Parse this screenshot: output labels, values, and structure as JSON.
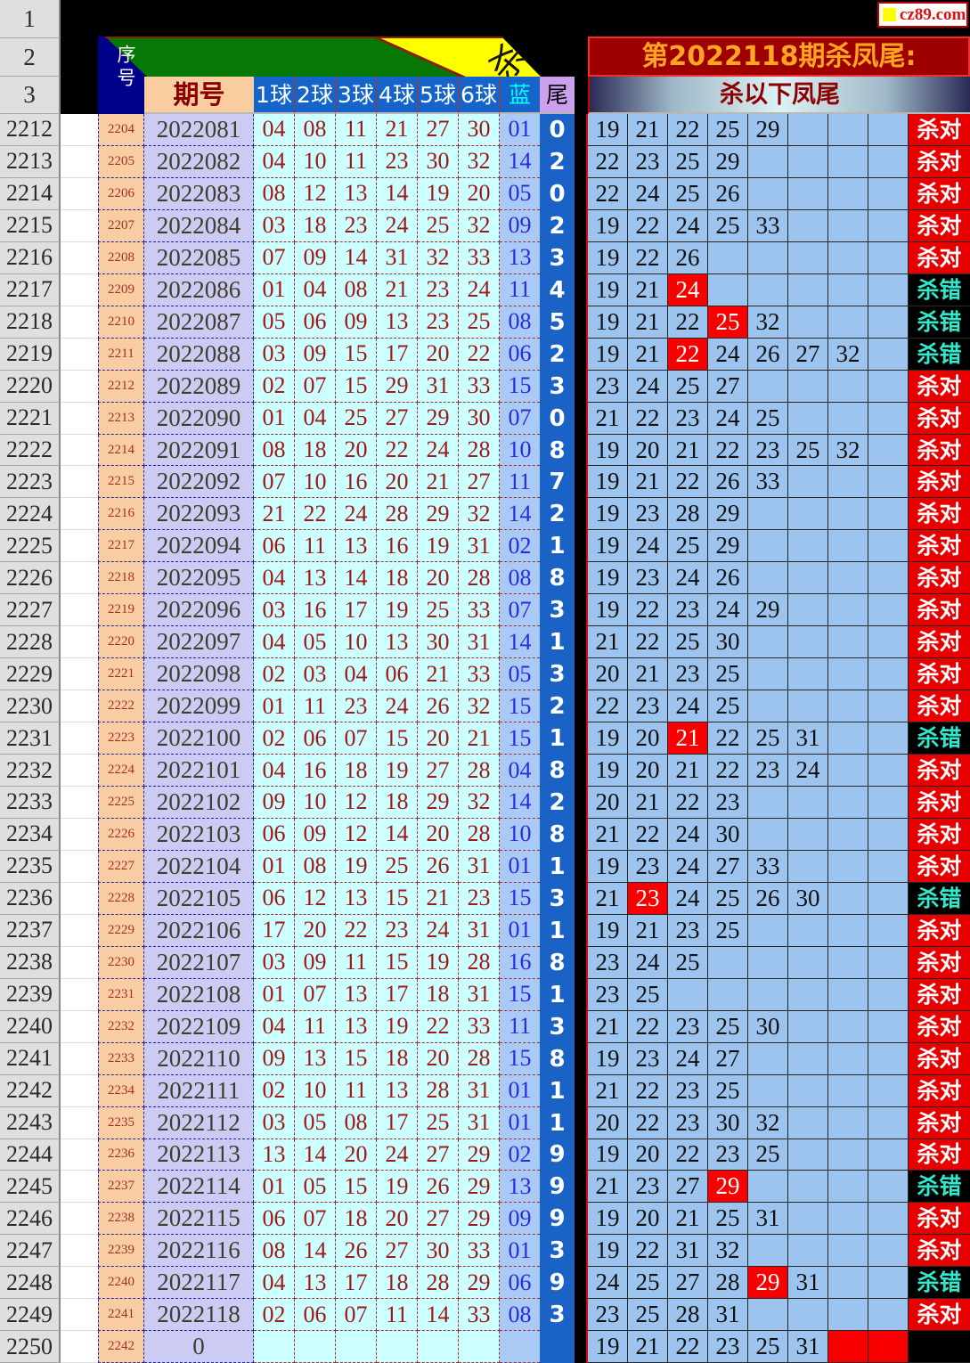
{
  "logo": {
    "text": "cz89.com"
  },
  "right_panel": {
    "title": "第2022118期杀凤尾:",
    "subtitle": "杀以下凤尾"
  },
  "headers": {
    "xuhao": "序号",
    "qihao": "期号",
    "balls": [
      "1球",
      "2球",
      "3球",
      "4球",
      "5球",
      "6球"
    ],
    "blue": "蓝",
    "tail": "尾"
  },
  "deco": {
    "rotated_glyph": "杀"
  },
  "gutter_top": [
    "1",
    "2",
    "3"
  ],
  "results": {
    "correct": "杀对",
    "wrong": "杀错"
  },
  "rows": [
    {
      "gutter": "2212",
      "xuhao": "2204",
      "qihao": "2022081",
      "balls": [
        "04",
        "08",
        "11",
        "21",
        "27",
        "30"
      ],
      "blue": "01",
      "tail": "0",
      "kills": [
        "19",
        "21",
        "22",
        "25",
        "29"
      ],
      "hot": [],
      "red": [],
      "result": "correct"
    },
    {
      "gutter": "2213",
      "xuhao": "2205",
      "qihao": "2022082",
      "balls": [
        "04",
        "10",
        "11",
        "23",
        "30",
        "32"
      ],
      "blue": "14",
      "tail": "2",
      "kills": [
        "22",
        "23",
        "25",
        "29"
      ],
      "hot": [],
      "red": [],
      "result": "correct"
    },
    {
      "gutter": "2214",
      "xuhao": "2206",
      "qihao": "2022083",
      "balls": [
        "08",
        "12",
        "13",
        "14",
        "19",
        "20"
      ],
      "blue": "05",
      "tail": "0",
      "kills": [
        "22",
        "24",
        "25",
        "26"
      ],
      "hot": [],
      "red": [],
      "result": "correct"
    },
    {
      "gutter": "2215",
      "xuhao": "2207",
      "qihao": "2022084",
      "balls": [
        "03",
        "18",
        "23",
        "24",
        "25",
        "32"
      ],
      "blue": "09",
      "tail": "2",
      "kills": [
        "19",
        "22",
        "24",
        "25",
        "33"
      ],
      "hot": [],
      "red": [],
      "result": "correct"
    },
    {
      "gutter": "2216",
      "xuhao": "2208",
      "qihao": "2022085",
      "balls": [
        "07",
        "09",
        "14",
        "31",
        "32",
        "33"
      ],
      "blue": "13",
      "tail": "3",
      "kills": [
        "19",
        "22",
        "26"
      ],
      "hot": [],
      "red": [],
      "result": "correct"
    },
    {
      "gutter": "2217",
      "xuhao": "2209",
      "qihao": "2022086",
      "balls": [
        "01",
        "04",
        "08",
        "21",
        "23",
        "24"
      ],
      "blue": "11",
      "tail": "4",
      "kills": [
        "19",
        "21",
        "24"
      ],
      "hot": [
        2
      ],
      "red": [],
      "result": "wrong"
    },
    {
      "gutter": "2218",
      "xuhao": "2210",
      "qihao": "2022087",
      "balls": [
        "05",
        "06",
        "09",
        "13",
        "23",
        "25"
      ],
      "blue": "08",
      "tail": "5",
      "kills": [
        "19",
        "21",
        "22",
        "25",
        "32"
      ],
      "hot": [
        3
      ],
      "red": [],
      "result": "wrong"
    },
    {
      "gutter": "2219",
      "xuhao": "2211",
      "qihao": "2022088",
      "balls": [
        "03",
        "09",
        "15",
        "17",
        "20",
        "22"
      ],
      "blue": "06",
      "tail": "2",
      "kills": [
        "19",
        "21",
        "22",
        "24",
        "26",
        "27",
        "32"
      ],
      "hot": [
        2
      ],
      "red": [],
      "result": "wrong"
    },
    {
      "gutter": "2220",
      "xuhao": "2212",
      "qihao": "2022089",
      "balls": [
        "02",
        "07",
        "15",
        "29",
        "31",
        "33"
      ],
      "blue": "15",
      "tail": "3",
      "kills": [
        "23",
        "24",
        "25",
        "27"
      ],
      "hot": [],
      "red": [],
      "result": "correct"
    },
    {
      "gutter": "2221",
      "xuhao": "2213",
      "qihao": "2022090",
      "balls": [
        "01",
        "04",
        "25",
        "27",
        "29",
        "30"
      ],
      "blue": "07",
      "tail": "0",
      "kills": [
        "21",
        "22",
        "23",
        "24",
        "25"
      ],
      "hot": [],
      "red": [],
      "result": "correct"
    },
    {
      "gutter": "2222",
      "xuhao": "2214",
      "qihao": "2022091",
      "balls": [
        "08",
        "18",
        "20",
        "22",
        "24",
        "28"
      ],
      "blue": "10",
      "tail": "8",
      "kills": [
        "19",
        "20",
        "21",
        "22",
        "23",
        "25",
        "32"
      ],
      "hot": [],
      "red": [],
      "result": "correct"
    },
    {
      "gutter": "2223",
      "xuhao": "2215",
      "qihao": "2022092",
      "balls": [
        "07",
        "10",
        "16",
        "20",
        "21",
        "27"
      ],
      "blue": "11",
      "tail": "7",
      "kills": [
        "19",
        "21",
        "22",
        "26",
        "33"
      ],
      "hot": [],
      "red": [],
      "result": "correct"
    },
    {
      "gutter": "2224",
      "xuhao": "2216",
      "qihao": "2022093",
      "balls": [
        "21",
        "22",
        "24",
        "28",
        "29",
        "32"
      ],
      "blue": "14",
      "tail": "2",
      "kills": [
        "19",
        "23",
        "28",
        "29"
      ],
      "hot": [],
      "red": [],
      "result": "correct"
    },
    {
      "gutter": "2225",
      "xuhao": "2217",
      "qihao": "2022094",
      "balls": [
        "06",
        "11",
        "13",
        "16",
        "19",
        "31"
      ],
      "blue": "02",
      "tail": "1",
      "kills": [
        "19",
        "24",
        "25",
        "29"
      ],
      "hot": [],
      "red": [],
      "result": "correct"
    },
    {
      "gutter": "2226",
      "xuhao": "2218",
      "qihao": "2022095",
      "balls": [
        "04",
        "13",
        "14",
        "18",
        "20",
        "28"
      ],
      "blue": "08",
      "tail": "8",
      "kills": [
        "19",
        "23",
        "24",
        "26"
      ],
      "hot": [],
      "red": [],
      "result": "correct"
    },
    {
      "gutter": "2227",
      "xuhao": "2219",
      "qihao": "2022096",
      "balls": [
        "03",
        "16",
        "17",
        "19",
        "25",
        "33"
      ],
      "blue": "07",
      "tail": "3",
      "kills": [
        "19",
        "22",
        "23",
        "24",
        "29"
      ],
      "hot": [],
      "red": [],
      "result": "correct"
    },
    {
      "gutter": "2228",
      "xuhao": "2220",
      "qihao": "2022097",
      "balls": [
        "04",
        "05",
        "10",
        "13",
        "30",
        "31"
      ],
      "blue": "14",
      "tail": "1",
      "kills": [
        "21",
        "22",
        "25",
        "30"
      ],
      "hot": [],
      "red": [],
      "result": "correct"
    },
    {
      "gutter": "2229",
      "xuhao": "2221",
      "qihao": "2022098",
      "balls": [
        "02",
        "03",
        "04",
        "06",
        "21",
        "33"
      ],
      "blue": "05",
      "tail": "3",
      "kills": [
        "20",
        "21",
        "23",
        "25"
      ],
      "hot": [],
      "red": [],
      "result": "correct"
    },
    {
      "gutter": "2230",
      "xuhao": "2222",
      "qihao": "2022099",
      "balls": [
        "01",
        "11",
        "23",
        "24",
        "26",
        "32"
      ],
      "blue": "15",
      "tail": "2",
      "kills": [
        "22",
        "23",
        "24",
        "25"
      ],
      "hot": [],
      "red": [],
      "result": "correct"
    },
    {
      "gutter": "2231",
      "xuhao": "2223",
      "qihao": "2022100",
      "balls": [
        "02",
        "06",
        "07",
        "15",
        "20",
        "21"
      ],
      "blue": "15",
      "tail": "1",
      "kills": [
        "19",
        "20",
        "21",
        "22",
        "25",
        "31"
      ],
      "hot": [
        2
      ],
      "red": [],
      "result": "wrong"
    },
    {
      "gutter": "2232",
      "xuhao": "2224",
      "qihao": "2022101",
      "balls": [
        "04",
        "16",
        "18",
        "19",
        "27",
        "28"
      ],
      "blue": "04",
      "tail": "8",
      "kills": [
        "19",
        "20",
        "21",
        "22",
        "23",
        "24"
      ],
      "hot": [],
      "red": [],
      "result": "correct"
    },
    {
      "gutter": "2233",
      "xuhao": "2225",
      "qihao": "2022102",
      "balls": [
        "09",
        "10",
        "12",
        "18",
        "29",
        "32"
      ],
      "blue": "14",
      "tail": "2",
      "kills": [
        "20",
        "21",
        "22",
        "23"
      ],
      "hot": [],
      "red": [],
      "result": "correct"
    },
    {
      "gutter": "2234",
      "xuhao": "2226",
      "qihao": "2022103",
      "balls": [
        "06",
        "09",
        "12",
        "14",
        "20",
        "28"
      ],
      "blue": "10",
      "tail": "8",
      "kills": [
        "21",
        "22",
        "24",
        "30"
      ],
      "hot": [],
      "red": [],
      "result": "correct"
    },
    {
      "gutter": "2235",
      "xuhao": "2227",
      "qihao": "2022104",
      "balls": [
        "01",
        "08",
        "19",
        "25",
        "26",
        "31"
      ],
      "blue": "01",
      "tail": "1",
      "kills": [
        "19",
        "23",
        "24",
        "27",
        "33"
      ],
      "hot": [],
      "red": [],
      "result": "correct"
    },
    {
      "gutter": "2236",
      "xuhao": "2228",
      "qihao": "2022105",
      "balls": [
        "06",
        "12",
        "13",
        "15",
        "21",
        "23"
      ],
      "blue": "15",
      "tail": "3",
      "kills": [
        "21",
        "23",
        "24",
        "25",
        "26",
        "30"
      ],
      "hot": [
        1
      ],
      "red": [],
      "result": "wrong"
    },
    {
      "gutter": "2237",
      "xuhao": "2229",
      "qihao": "2022106",
      "balls": [
        "17",
        "20",
        "22",
        "23",
        "24",
        "31"
      ],
      "blue": "01",
      "tail": "1",
      "kills": [
        "19",
        "21",
        "23",
        "25"
      ],
      "hot": [],
      "red": [],
      "result": "correct"
    },
    {
      "gutter": "2238",
      "xuhao": "2230",
      "qihao": "2022107",
      "balls": [
        "03",
        "09",
        "11",
        "15",
        "19",
        "28"
      ],
      "blue": "16",
      "tail": "8",
      "kills": [
        "23",
        "24",
        "25"
      ],
      "hot": [],
      "red": [],
      "result": "correct"
    },
    {
      "gutter": "2239",
      "xuhao": "2231",
      "qihao": "2022108",
      "balls": [
        "01",
        "07",
        "13",
        "17",
        "18",
        "31"
      ],
      "blue": "15",
      "tail": "1",
      "kills": [
        "23",
        "25"
      ],
      "hot": [],
      "red": [],
      "result": "correct"
    },
    {
      "gutter": "2240",
      "xuhao": "2232",
      "qihao": "2022109",
      "balls": [
        "04",
        "11",
        "13",
        "19",
        "22",
        "33"
      ],
      "blue": "11",
      "tail": "3",
      "kills": [
        "21",
        "22",
        "23",
        "25",
        "30"
      ],
      "hot": [],
      "red": [],
      "result": "correct"
    },
    {
      "gutter": "2241",
      "xuhao": "2233",
      "qihao": "2022110",
      "balls": [
        "09",
        "13",
        "15",
        "18",
        "20",
        "28"
      ],
      "blue": "15",
      "tail": "8",
      "kills": [
        "19",
        "23",
        "24",
        "27"
      ],
      "hot": [],
      "red": [],
      "result": "correct"
    },
    {
      "gutter": "2242",
      "xuhao": "2234",
      "qihao": "2022111",
      "balls": [
        "02",
        "10",
        "11",
        "13",
        "28",
        "31"
      ],
      "blue": "01",
      "tail": "1",
      "kills": [
        "21",
        "22",
        "23",
        "25"
      ],
      "hot": [],
      "red": [],
      "result": "correct"
    },
    {
      "gutter": "2243",
      "xuhao": "2235",
      "qihao": "2022112",
      "balls": [
        "03",
        "05",
        "08",
        "17",
        "25",
        "31"
      ],
      "blue": "01",
      "tail": "1",
      "kills": [
        "20",
        "22",
        "23",
        "30",
        "32"
      ],
      "hot": [],
      "red": [],
      "result": "correct"
    },
    {
      "gutter": "2244",
      "xuhao": "2236",
      "qihao": "2022113",
      "balls": [
        "13",
        "14",
        "20",
        "24",
        "27",
        "29"
      ],
      "blue": "02",
      "tail": "9",
      "kills": [
        "19",
        "20",
        "22",
        "23",
        "25"
      ],
      "hot": [],
      "red": [],
      "result": "correct"
    },
    {
      "gutter": "2245",
      "xuhao": "2237",
      "qihao": "2022114",
      "balls": [
        "01",
        "05",
        "15",
        "19",
        "26",
        "29"
      ],
      "blue": "13",
      "tail": "9",
      "kills": [
        "21",
        "23",
        "27",
        "29"
      ],
      "hot": [
        3
      ],
      "red": [],
      "result": "wrong"
    },
    {
      "gutter": "2246",
      "xuhao": "2238",
      "qihao": "2022115",
      "balls": [
        "06",
        "07",
        "18",
        "20",
        "27",
        "29"
      ],
      "blue": "09",
      "tail": "9",
      "kills": [
        "19",
        "20",
        "21",
        "25",
        "31"
      ],
      "hot": [],
      "red": [],
      "result": "correct"
    },
    {
      "gutter": "2247",
      "xuhao": "2239",
      "qihao": "2022116",
      "balls": [
        "08",
        "14",
        "26",
        "27",
        "30",
        "33"
      ],
      "blue": "01",
      "tail": "3",
      "kills": [
        "19",
        "22",
        "31",
        "32"
      ],
      "hot": [],
      "red": [],
      "result": "correct"
    },
    {
      "gutter": "2248",
      "xuhao": "2240",
      "qihao": "2022117",
      "balls": [
        "04",
        "13",
        "17",
        "18",
        "28",
        "29"
      ],
      "blue": "06",
      "tail": "9",
      "kills": [
        "24",
        "25",
        "27",
        "28",
        "29",
        "31"
      ],
      "hot": [
        4
      ],
      "red": [],
      "result": "wrong"
    },
    {
      "gutter": "2249",
      "xuhao": "2241",
      "qihao": "2022118",
      "balls": [
        "02",
        "06",
        "07",
        "11",
        "14",
        "33"
      ],
      "blue": "08",
      "tail": "3",
      "kills": [
        "23",
        "25",
        "28",
        "31"
      ],
      "hot": [],
      "red": [],
      "result": "correct"
    },
    {
      "gutter": "2250",
      "xuhao": "2242",
      "qihao": "0",
      "balls": [
        "",
        "",
        "",
        "",
        "",
        ""
      ],
      "blue": "",
      "tail": "",
      "kills": [
        "19",
        "21",
        "22",
        "23",
        "25",
        "31"
      ],
      "hot": [],
      "red": [
        6,
        7
      ],
      "result": "none"
    }
  ]
}
